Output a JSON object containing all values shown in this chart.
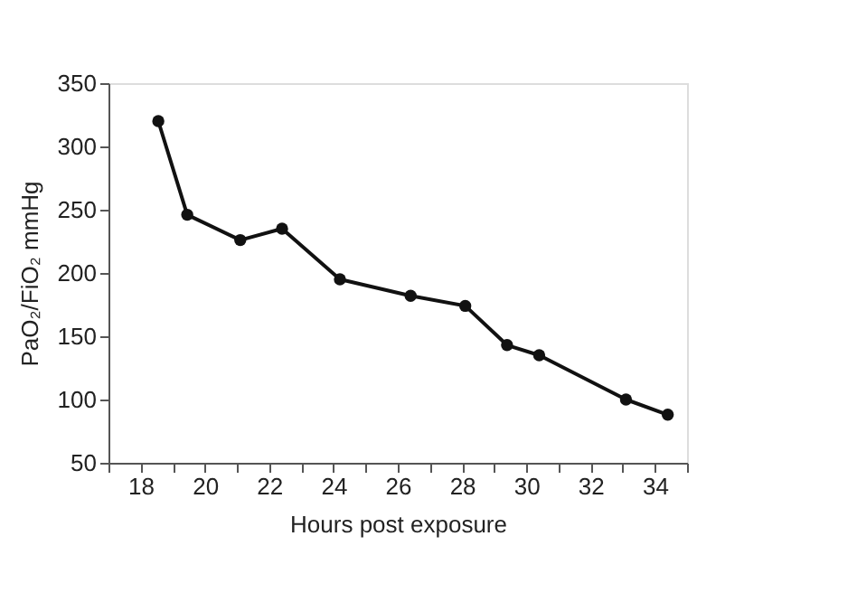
{
  "chart_data": {
    "type": "line",
    "xlabel": "Hours post exposure",
    "ylabel": "PaO₂/FiO₂ mmHg",
    "x": [
      18.55,
      19.45,
      21.1,
      22.4,
      24.2,
      26.4,
      28.1,
      29.4,
      30.4,
      33.1,
      34.4
    ],
    "series": [
      {
        "color": "#111111",
        "values": [
          320,
          246,
          226,
          235,
          195,
          182,
          174,
          143,
          135,
          100,
          88
        ]
      }
    ],
    "xlim": [
      17,
      35
    ],
    "xticks": [
      {
        "value": 17,
        "label": null
      },
      18,
      {
        "value": 19,
        "label": null
      },
      20,
      {
        "value": 21,
        "label": null
      },
      22,
      {
        "value": 23,
        "label": null
      },
      24,
      {
        "value": 25,
        "label": null
      },
      26,
      {
        "value": 27,
        "label": null
      },
      28,
      {
        "value": 29,
        "label": null
      },
      30,
      {
        "value": 31,
        "label": null
      },
      32,
      {
        "value": 33,
        "label": null
      },
      34,
      {
        "value": 35,
        "label": null
      }
    ],
    "ylim": [
      50,
      350
    ],
    "yticks": [
      50,
      100,
      150,
      200,
      250,
      300,
      350
    ],
    "grid": false,
    "marker": "circle",
    "line_style": "solid"
  }
}
